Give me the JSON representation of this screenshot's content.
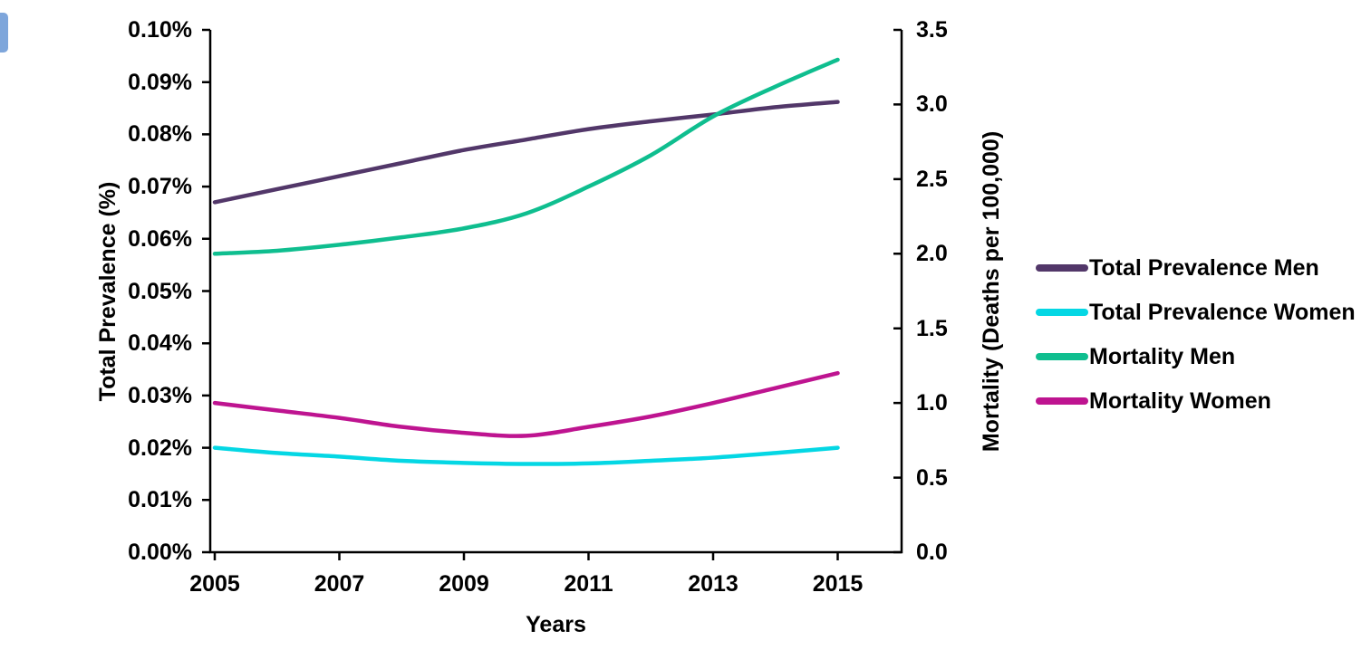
{
  "page": {
    "background": "#ffffff",
    "edge_artifact_color": "#7EA6DB",
    "axis_color": "#000000"
  },
  "chart_data": {
    "type": "line",
    "title": "",
    "xlabel": "Years",
    "x": [
      2005,
      2006,
      2007,
      2008,
      2009,
      2010,
      2011,
      2012,
      2013,
      2014,
      2015
    ],
    "x_tick_years": [
      2005,
      2007,
      2009,
      2011,
      2013,
      2015
    ],
    "x_tick_labels": [
      "2005",
      "2007",
      "2009",
      "2011",
      "2013",
      "2015"
    ],
    "grid": false,
    "legend_position": "right",
    "left_axis": {
      "label": "Total Prevalence (%)",
      "range": [
        0,
        0.1
      ],
      "tick_labels": [
        "0.00%",
        "0.01%",
        "0.02%",
        "0.03%",
        "0.04%",
        "0.05%",
        "0.06%",
        "0.07%",
        "0.08%",
        "0.09%",
        "0.10%"
      ]
    },
    "right_axis": {
      "label": "Mortality (Deaths per 100,000)",
      "range": [
        0,
        3.5
      ],
      "tick_labels": [
        "0.0",
        "0.5",
        "1.0",
        "1.5",
        "2.0",
        "2.5",
        "3.0",
        "3.5"
      ]
    },
    "series": [
      {
        "name": "Total Prevalence Men",
        "axis": "left",
        "color": "#523769",
        "values": [
          0.067,
          0.0695,
          0.072,
          0.0745,
          0.077,
          0.079,
          0.081,
          0.0825,
          0.0838,
          0.0852,
          0.0862
        ]
      },
      {
        "name": "Total Prevalence Women",
        "axis": "left",
        "color": "#04D7E4",
        "values": [
          0.02,
          0.019,
          0.0183,
          0.0175,
          0.0171,
          0.0169,
          0.017,
          0.0175,
          0.0181,
          0.019,
          0.02
        ]
      },
      {
        "name": "Mortality Men",
        "axis": "right",
        "color": "#0FBE8F",
        "values": [
          2.0,
          2.02,
          2.06,
          2.11,
          2.17,
          2.27,
          2.45,
          2.66,
          2.92,
          3.12,
          3.3
        ]
      },
      {
        "name": "Mortality Women",
        "axis": "right",
        "color": "#BE1490",
        "values": [
          1.0,
          0.95,
          0.9,
          0.84,
          0.8,
          0.78,
          0.84,
          0.91,
          1.0,
          1.1,
          1.2
        ]
      }
    ]
  }
}
